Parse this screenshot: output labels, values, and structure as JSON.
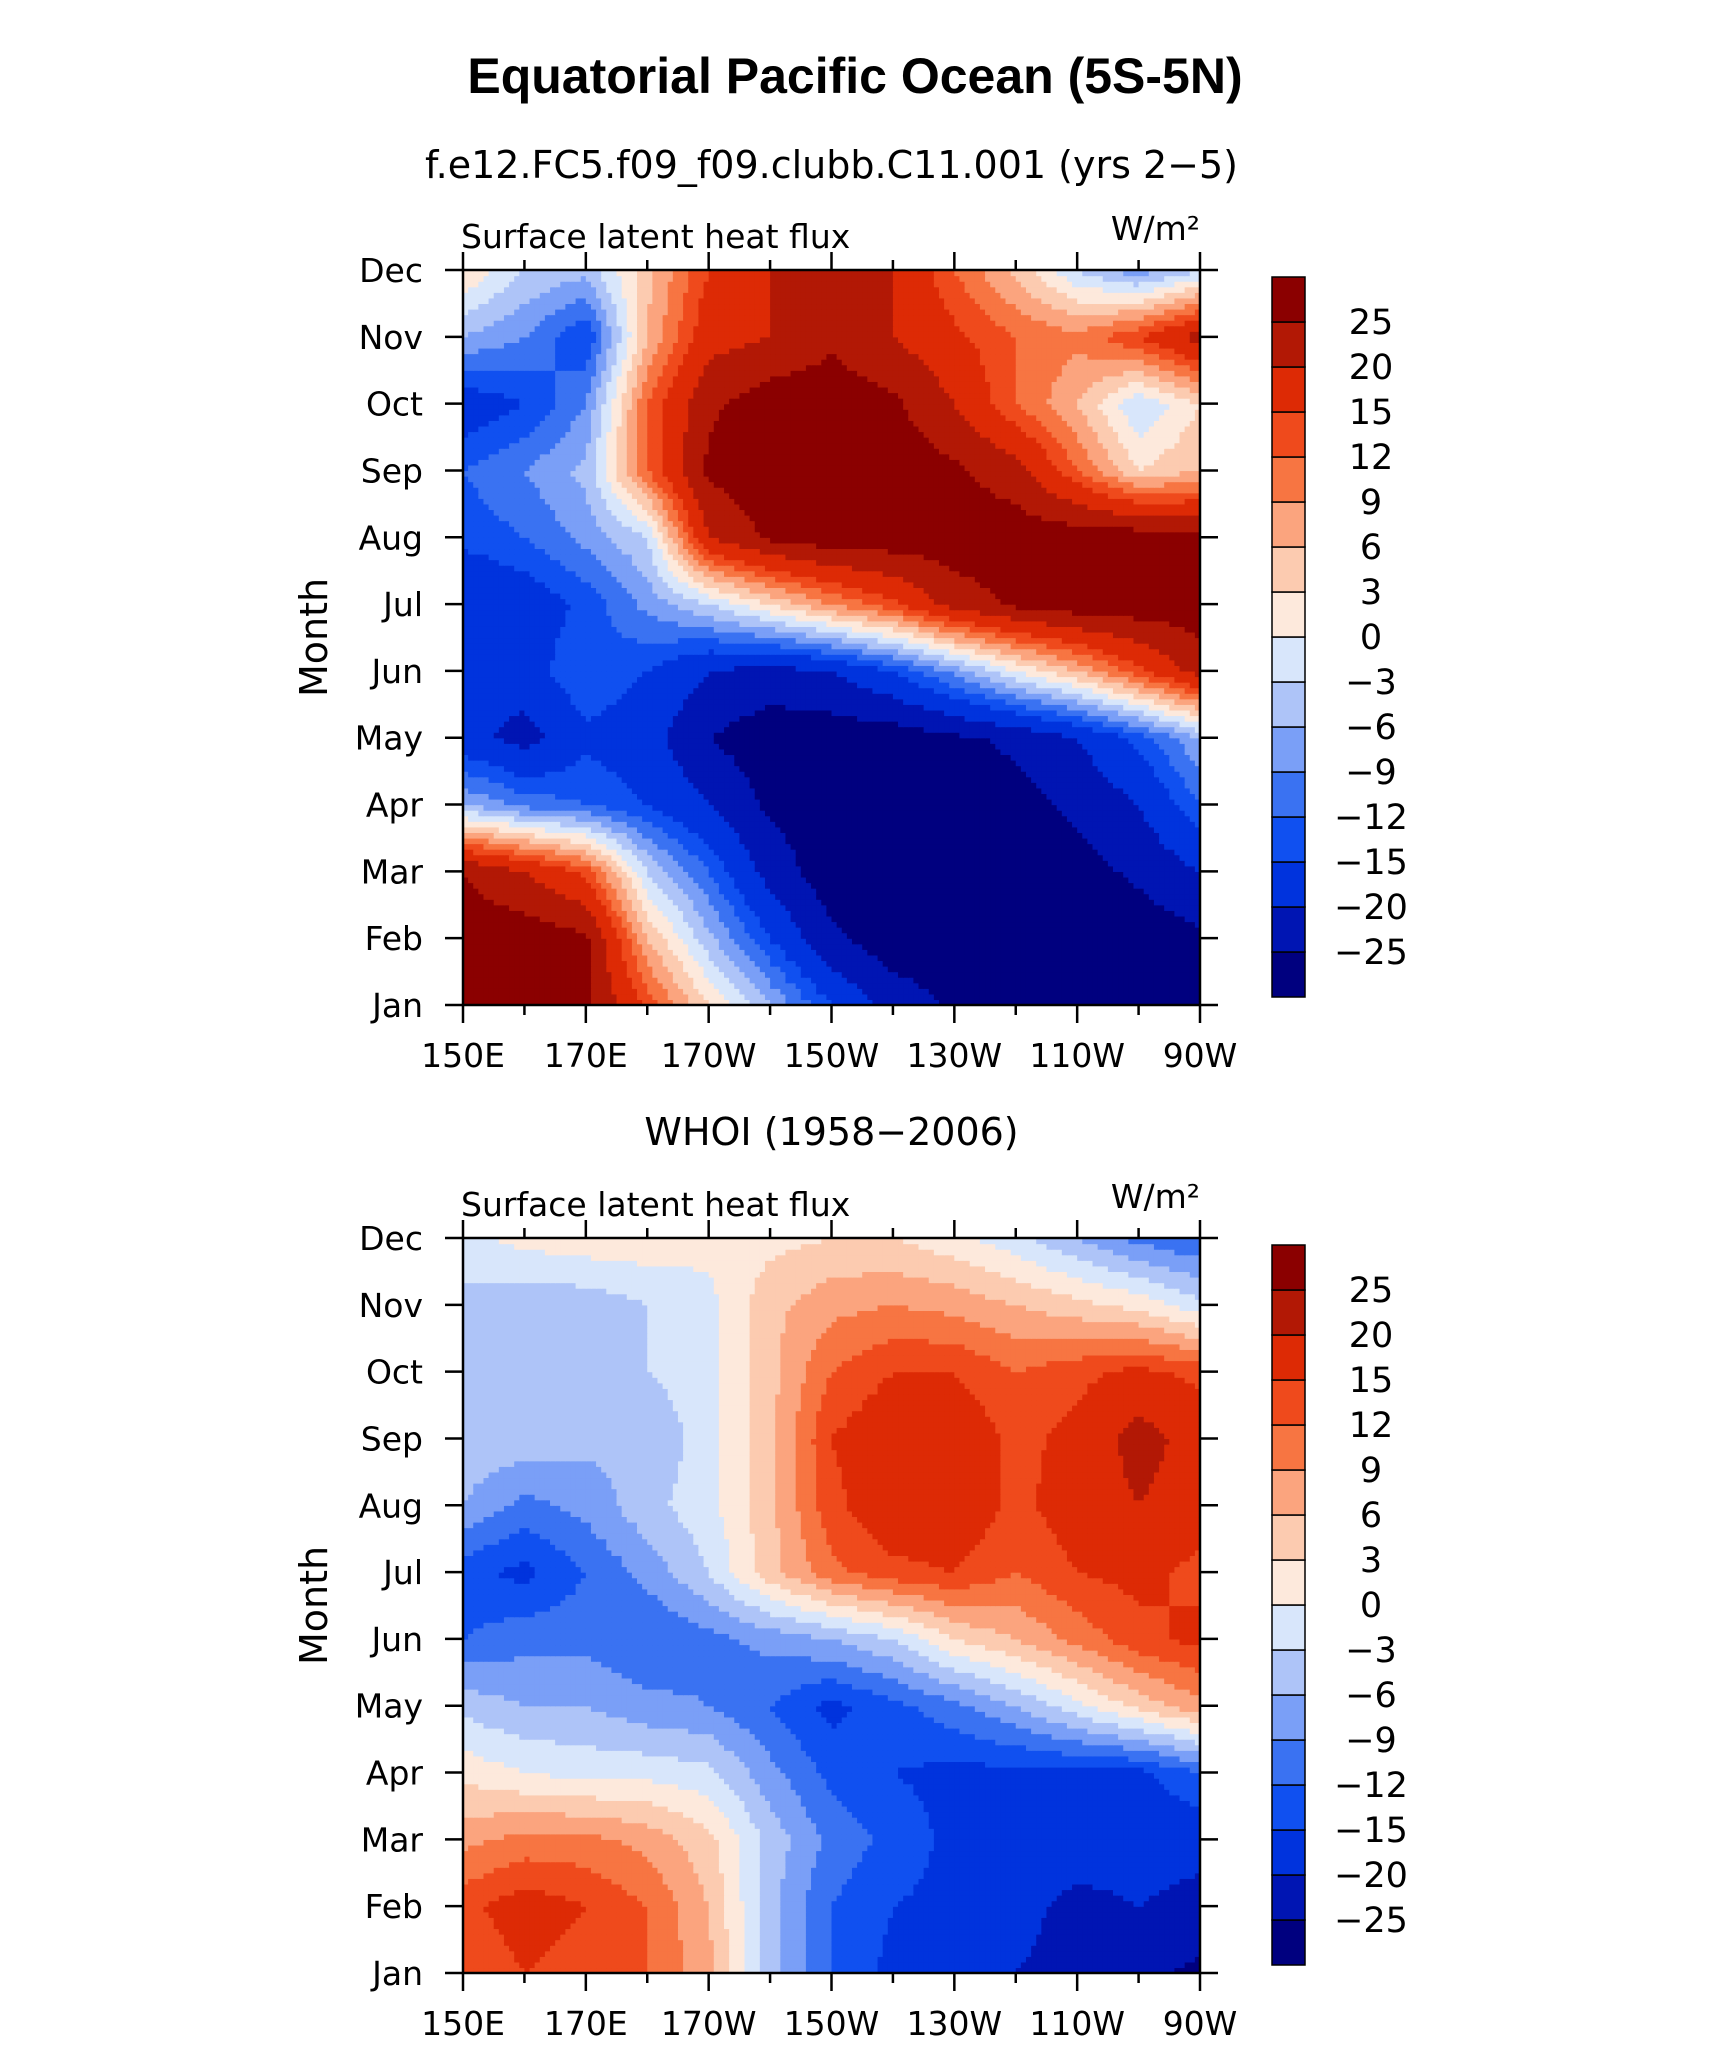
{
  "figure": {
    "title": "Equatorial Pacific Ocean (5S-5N)"
  },
  "legend_colors": [
    "#00007f",
    "#0015b3",
    "#0033dd",
    "#1050f0",
    "#3a72f2",
    "#7a9ff7",
    "#aec4f8",
    "#d8e6fb",
    "#fde9dc",
    "#fccbb0",
    "#fba47e",
    "#f77542",
    "#ef4a1c",
    "#dd2a05",
    "#b21805",
    "#8b0000"
  ],
  "legend_levels": [
    "-25",
    "-20",
    "-15",
    "-12",
    "-9",
    "-6",
    "-3",
    "0",
    "3",
    "6",
    "9",
    "12",
    "15",
    "20",
    "25"
  ],
  "chart_data": [
    {
      "type": "heatmap",
      "title": "f.e12.FC5.f09_f09.clubb.C11.001 (yrs 2−5)",
      "left_string": "Surface latent heat flux",
      "units": "W/m²",
      "ylabel": "Month",
      "x_ticks": [
        "150E",
        "170E",
        "170W",
        "150W",
        "130W",
        "110W",
        "90W"
      ],
      "x_lon": [
        150,
        160,
        170,
        180,
        190,
        200,
        210,
        220,
        230,
        240,
        250,
        260,
        270
      ],
      "y_ticks": [
        "Jan",
        "Feb",
        "Mar",
        "Apr",
        "May",
        "Jun",
        "Jul",
        "Aug",
        "Sep",
        "Oct",
        "Nov",
        "Dec"
      ],
      "values": [
        [
          28,
          28,
          26,
          14,
          3,
          -6,
          -15,
          -22,
          -26,
          -28,
          -28,
          -28,
          -28
        ],
        [
          28,
          28,
          26,
          6,
          -5,
          -15,
          -24,
          -28,
          -28,
          -28,
          -28,
          -28,
          -26
        ],
        [
          25,
          20,
          14,
          -3,
          -12,
          -22,
          -28,
          -28,
          -28,
          -28,
          -27,
          -24,
          -20
        ],
        [
          -6,
          -10,
          -12,
          -15,
          -20,
          -26,
          -28,
          -28,
          -28,
          -27,
          -24,
          -20,
          -12
        ],
        [
          -18,
          -22,
          -16,
          -18,
          -25,
          -28,
          -28,
          -28,
          -26,
          -24,
          -20,
          -14,
          -6
        ],
        [
          -18,
          -17,
          -12,
          -15,
          -20,
          -22,
          -20,
          -15,
          -8,
          0,
          6,
          14,
          22
        ],
        [
          -20,
          -18,
          -14,
          -8,
          -3,
          3,
          9,
          14,
          22,
          26,
          28,
          28,
          28
        ],
        [
          -14,
          -12,
          -8,
          -3,
          20,
          26,
          28,
          28,
          28,
          28,
          28,
          28,
          26
        ],
        [
          -12,
          -9,
          -5,
          12,
          26,
          28,
          28,
          28,
          26,
          22,
          12,
          3,
          6
        ],
        [
          -18,
          -15,
          -9,
          12,
          24,
          28,
          28,
          26,
          20,
          12,
          6,
          -3,
          3
        ],
        [
          -6,
          -9,
          -15,
          6,
          18,
          20,
          24,
          20,
          16,
          12,
          10,
          15,
          22
        ],
        [
          3,
          -3,
          -5,
          5,
          15,
          20,
          24,
          20,
          12,
          5,
          -3,
          -8,
          -3
        ]
      ]
    },
    {
      "type": "heatmap",
      "title": "WHOI (1958−2006)",
      "left_string": "Surface latent heat flux",
      "units": "W/m²",
      "ylabel": "Month",
      "x_ticks": [
        "150E",
        "170E",
        "170W",
        "150W",
        "130W",
        "110W",
        "90W"
      ],
      "x_lon": [
        150,
        160,
        170,
        180,
        190,
        200,
        210,
        220,
        230,
        240,
        250,
        260,
        270
      ],
      "y_ticks": [
        "Jan",
        "Feb",
        "Mar",
        "Apr",
        "May",
        "Jun",
        "Jul",
        "Aug",
        "Sep",
        "Oct",
        "Nov",
        "Dec"
      ],
      "values": [
        [
          12,
          15,
          13,
          12,
          7,
          -5,
          -12,
          -16,
          -18,
          -20,
          -22,
          -24,
          -26
        ],
        [
          14,
          17,
          15,
          12,
          6,
          -5,
          -12,
          -15,
          -16,
          -18,
          -22,
          -20,
          -22
        ],
        [
          8,
          10,
          10,
          8,
          4,
          -4,
          -10,
          -13,
          -16,
          -16,
          -16,
          -17,
          -18
        ],
        [
          2,
          0,
          -1,
          -1,
          -2,
          -8,
          -13,
          -15,
          -16,
          -16,
          -16,
          -16,
          -12
        ],
        [
          -4,
          -6,
          -6,
          -8,
          -9,
          -12,
          -16,
          -13,
          -10,
          -6,
          -1,
          4,
          8
        ],
        [
          -12,
          -10,
          -10,
          -12,
          -10,
          -8,
          -6,
          -3,
          3,
          6,
          10,
          14,
          16
        ],
        [
          -14,
          -16,
          -12,
          -8,
          -3,
          5,
          11,
          14,
          15,
          12,
          15,
          16,
          14
        ],
        [
          -6,
          -10,
          -8,
          -4,
          -1,
          5,
          14,
          18,
          18,
          14,
          17,
          20,
          17
        ],
        [
          -4,
          -4,
          -5,
          -6,
          -1,
          5,
          15,
          18,
          18,
          14,
          16,
          22,
          18
        ],
        [
          -4,
          -3,
          -4,
          -3,
          -1,
          5,
          12,
          15,
          15,
          12,
          14,
          16,
          14
        ],
        [
          -4,
          -5,
          -5,
          -3,
          -1,
          5,
          8,
          9,
          8,
          6,
          4,
          2,
          -2
        ],
        [
          -1,
          1,
          2,
          2,
          1,
          2,
          3,
          3,
          1,
          -2,
          -6,
          -10,
          -12
        ]
      ]
    }
  ]
}
